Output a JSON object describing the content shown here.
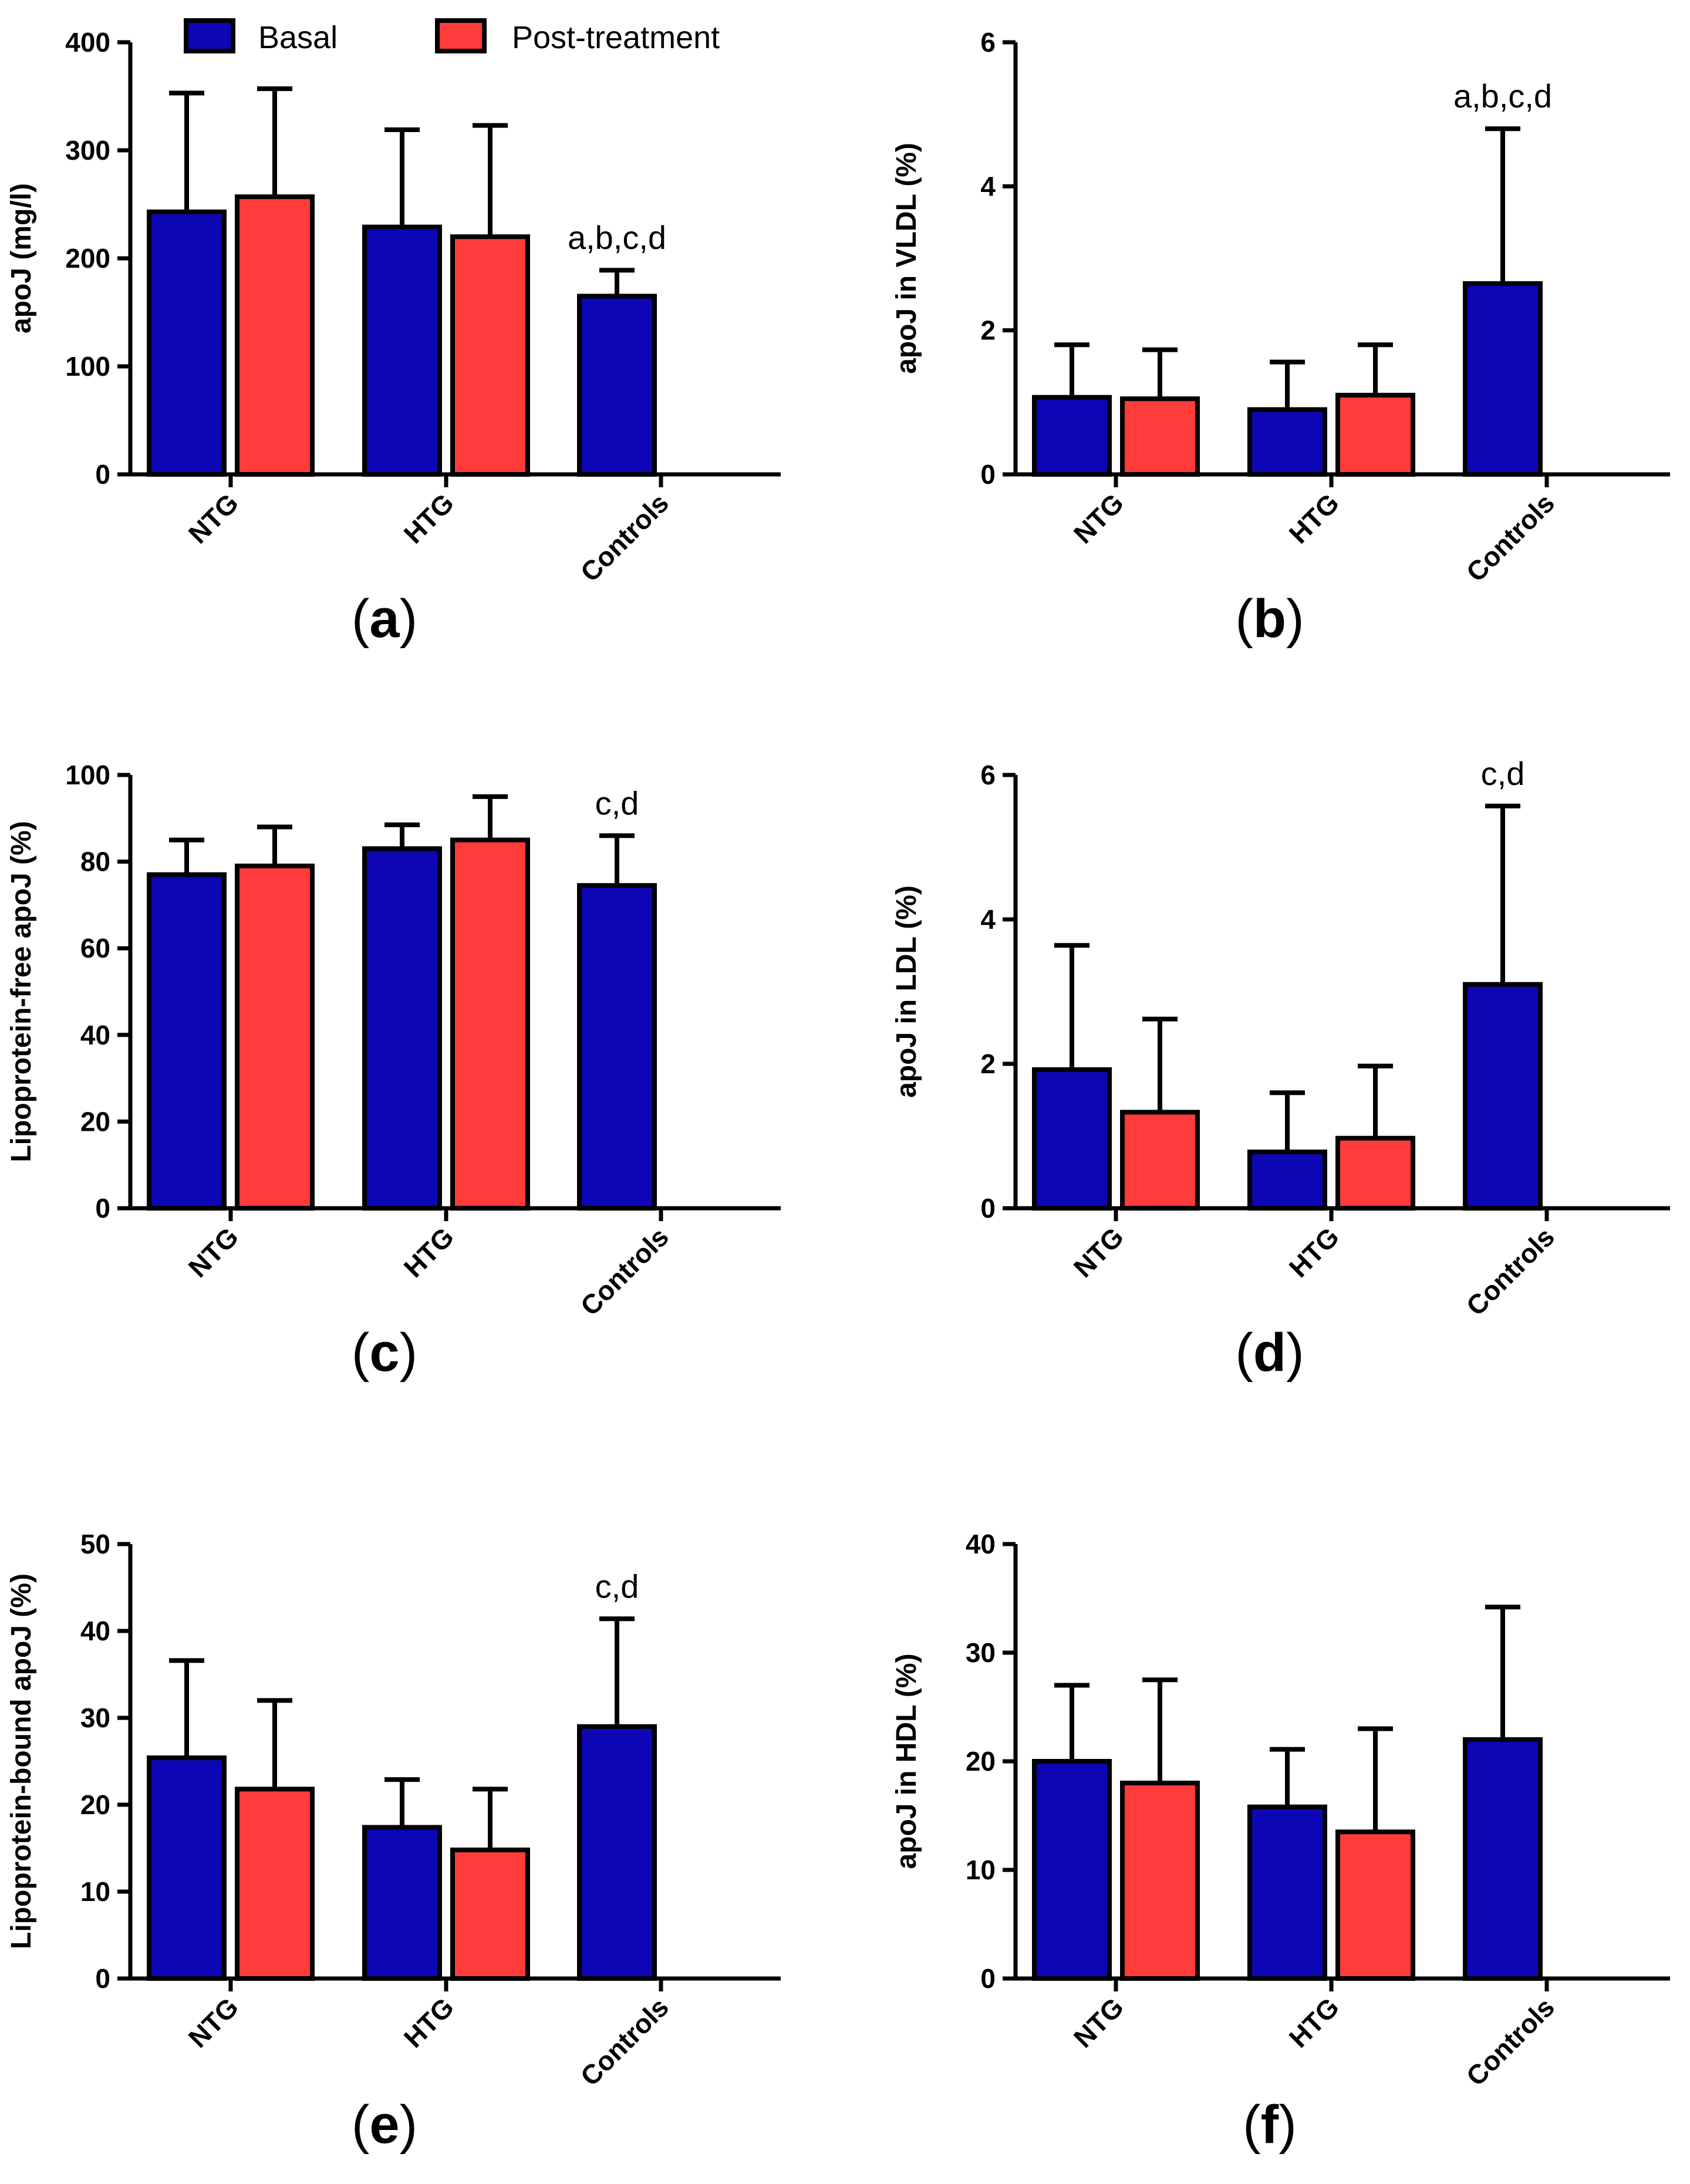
{
  "colors": {
    "basal": "#0d06b4",
    "post": "#ff3b3b",
    "axis": "#000000"
  },
  "legend": {
    "basal": "Basal",
    "post": "Post-treatment"
  },
  "chart_data": [
    {
      "id": "a",
      "panel_label": "a",
      "type": "bar",
      "ylabel": "apoJ (mg/l)",
      "ylim": [
        0,
        400
      ],
      "yticks": [
        0,
        100,
        200,
        300,
        400
      ],
      "categories": [
        "NTG",
        "HTG",
        "Controls"
      ],
      "series": [
        {
          "name": "Basal",
          "values": [
            243,
            229,
            165
          ],
          "errors": [
            110,
            90,
            24
          ]
        },
        {
          "name": "Post-treatment",
          "values": [
            257,
            220,
            null
          ],
          "errors": [
            100,
            103,
            null
          ]
        }
      ],
      "annotation": "a,b,c,d"
    },
    {
      "id": "b",
      "panel_label": "b",
      "type": "bar",
      "ylabel": "apoJ in VLDL (%)",
      "ylim": [
        0,
        6
      ],
      "yticks": [
        0,
        2,
        4,
        6
      ],
      "categories": [
        "NTG",
        "HTG",
        "Controls"
      ],
      "series": [
        {
          "name": "Basal",
          "values": [
            1.07,
            0.9,
            2.65
          ],
          "errors": [
            0.73,
            0.66,
            2.15
          ]
        },
        {
          "name": "Post-treatment",
          "values": [
            1.05,
            1.1,
            null
          ],
          "errors": [
            0.68,
            0.7,
            null
          ]
        }
      ],
      "annotation": "a,b,c,d"
    },
    {
      "id": "c",
      "panel_label": "c",
      "type": "bar",
      "ylabel": "Lipoprotein-free apoJ (%)",
      "ylim": [
        0,
        100
      ],
      "yticks": [
        0,
        20,
        40,
        60,
        80,
        100
      ],
      "categories": [
        "NTG",
        "HTG",
        "Controls"
      ],
      "series": [
        {
          "name": "Basal",
          "values": [
            77,
            83,
            74.5
          ],
          "errors": [
            8,
            5.5,
            11.5
          ]
        },
        {
          "name": "Post-treatment",
          "values": [
            79,
            85,
            null
          ],
          "errors": [
            9,
            10,
            null
          ]
        }
      ],
      "annotation": "c,d"
    },
    {
      "id": "d",
      "panel_label": "d",
      "type": "bar",
      "ylabel": "apoJ in LDL (%)",
      "ylim": [
        0,
        6
      ],
      "yticks": [
        0,
        2,
        4,
        6
      ],
      "categories": [
        "NTG",
        "HTG",
        "Controls"
      ],
      "series": [
        {
          "name": "Basal",
          "values": [
            1.92,
            0.78,
            3.1
          ],
          "errors": [
            1.72,
            0.82,
            2.47
          ]
        },
        {
          "name": "Post-treatment",
          "values": [
            1.33,
            0.97,
            null
          ],
          "errors": [
            1.29,
            1.0,
            null
          ]
        }
      ],
      "annotation": "c,d"
    },
    {
      "id": "e",
      "panel_label": "e",
      "type": "bar",
      "ylabel": "Lipoprotein-bound apoJ (%)",
      "ylim": [
        0,
        50
      ],
      "yticks": [
        0,
        10,
        20,
        30,
        40,
        50
      ],
      "categories": [
        "NTG",
        "HTG",
        "Controls"
      ],
      "series": [
        {
          "name": "Basal",
          "values": [
            25.4,
            17.4,
            29
          ],
          "errors": [
            11.2,
            5.5,
            12.4
          ]
        },
        {
          "name": "Post-treatment",
          "values": [
            21.8,
            14.8,
            null
          ],
          "errors": [
            10.2,
            7,
            null
          ]
        }
      ],
      "annotation": "c,d"
    },
    {
      "id": "f",
      "panel_label": "f",
      "type": "bar",
      "ylabel": "apoJ in HDL (%)",
      "ylim": [
        0,
        40
      ],
      "yticks": [
        0,
        10,
        20,
        30,
        40
      ],
      "categories": [
        "NTG",
        "HTG",
        "Controls"
      ],
      "series": [
        {
          "name": "Basal",
          "values": [
            20,
            15.8,
            22
          ],
          "errors": [
            7,
            5.3,
            12.2
          ]
        },
        {
          "name": "Post-treatment",
          "values": [
            18,
            13.5,
            null
          ],
          "errors": [
            9.5,
            9.5,
            null
          ]
        }
      ],
      "annotation": ""
    }
  ]
}
